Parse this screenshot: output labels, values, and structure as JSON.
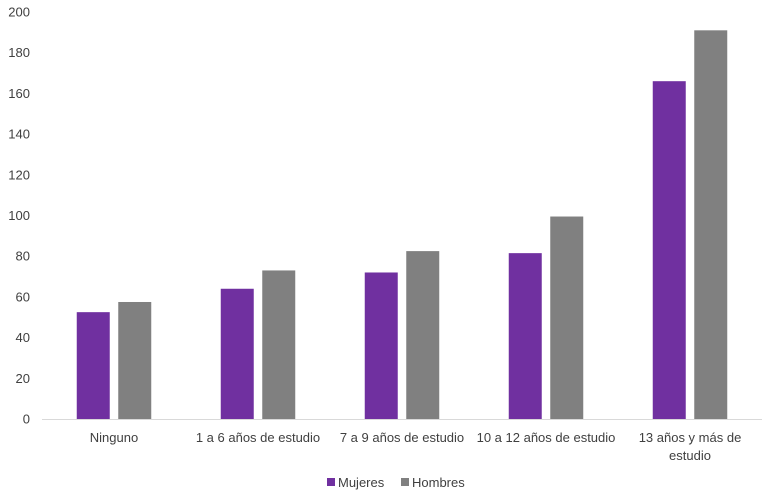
{
  "chart_data": {
    "type": "bar",
    "title": "",
    "xlabel": "",
    "ylabel": "",
    "categories": [
      [
        "Ninguno"
      ],
      [
        "1 a 6 años de estudio"
      ],
      [
        "7 a 9 años de estudio"
      ],
      [
        "10 a 12 años de estudio"
      ],
      [
        "13 años y más de",
        "estudio"
      ]
    ],
    "series": [
      {
        "name": "Mujeres",
        "color": "#7030a0",
        "values": [
          52.5,
          64,
          72,
          81.5,
          166
        ]
      },
      {
        "name": "Hombres",
        "color": "#808080",
        "values": [
          57.5,
          73,
          82.5,
          99.5,
          191
        ]
      }
    ],
    "ylim": [
      0,
      200
    ],
    "yticks": [
      0,
      20,
      40,
      60,
      80,
      100,
      120,
      140,
      160,
      180,
      200
    ],
    "grid": false,
    "legend_position": "bottom"
  }
}
